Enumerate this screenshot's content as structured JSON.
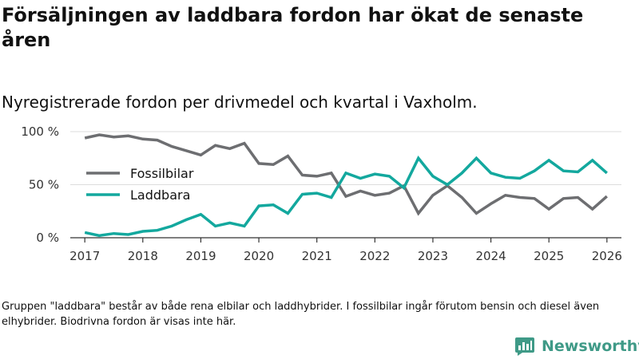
{
  "title": "Försäljningen av laddbara fordon har ökat de senaste åren",
  "subtitle": "Nyregistrerade fordon per drivmedel och kvartal i Vaxholm.",
  "footnote": "Gruppen \"laddbara\" består av både rena elbilar och laddhybrider. I fossilbilar ingår förutom bensin och diesel även elhybrider. Biodrivna fordon är visas inte här.",
  "brand": {
    "name": "Newsworthy",
    "color": "#3f9a87",
    "icon": "newsworthy-logo-icon"
  },
  "chart_data": {
    "type": "line",
    "title": "Försäljningen av laddbara fordon har ökat de senaste åren",
    "subtitle": "Nyregistrerade fordon per drivmedel och kvartal i Vaxholm.",
    "xlabel": "",
    "ylabel": "",
    "x_ticks": [
      "2017",
      "2018",
      "2019",
      "2020",
      "2021",
      "2022",
      "2023",
      "2024",
      "2025",
      "2026"
    ],
    "y_ticks": [
      "0 %",
      "50 %",
      "100 %"
    ],
    "y_tick_values": [
      0,
      50,
      100
    ],
    "ylim": [
      0,
      100
    ],
    "xlim": [
      2016.75,
      2026.25
    ],
    "grid": true,
    "legend_position": "middle-left",
    "x": [
      2017.0,
      2017.25,
      2017.5,
      2017.75,
      2018.0,
      2018.25,
      2018.5,
      2018.75,
      2019.0,
      2019.25,
      2019.5,
      2019.75,
      2020.0,
      2020.25,
      2020.5,
      2020.75,
      2021.0,
      2021.25,
      2021.5,
      2021.75,
      2022.0,
      2022.25,
      2022.5,
      2022.75,
      2023.0,
      2023.25,
      2023.5,
      2023.75,
      2024.0,
      2024.25,
      2024.5,
      2024.75,
      2025.0,
      2025.25,
      2025.5,
      2025.75,
      2026.0
    ],
    "series": [
      {
        "name": "Fossilbilar",
        "color": "#6d6e71",
        "values": [
          94,
          97,
          95,
          96,
          93,
          92,
          86,
          82,
          78,
          87,
          84,
          89,
          70,
          69,
          77,
          59,
          58,
          61,
          39,
          44,
          40,
          42,
          49,
          23,
          40,
          49,
          38,
          23,
          32,
          40,
          38,
          37,
          27,
          37,
          38,
          27,
          39
        ]
      },
      {
        "name": "Laddbara",
        "color": "#13a89e",
        "values": [
          5,
          2,
          4,
          3,
          6,
          7,
          11,
          17,
          22,
          11,
          14,
          11,
          30,
          31,
          23,
          41,
          42,
          38,
          61,
          56,
          60,
          58,
          47,
          75,
          58,
          50,
          61,
          75,
          61,
          57,
          56,
          63,
          73,
          63,
          62,
          73,
          61
        ]
      }
    ]
  }
}
